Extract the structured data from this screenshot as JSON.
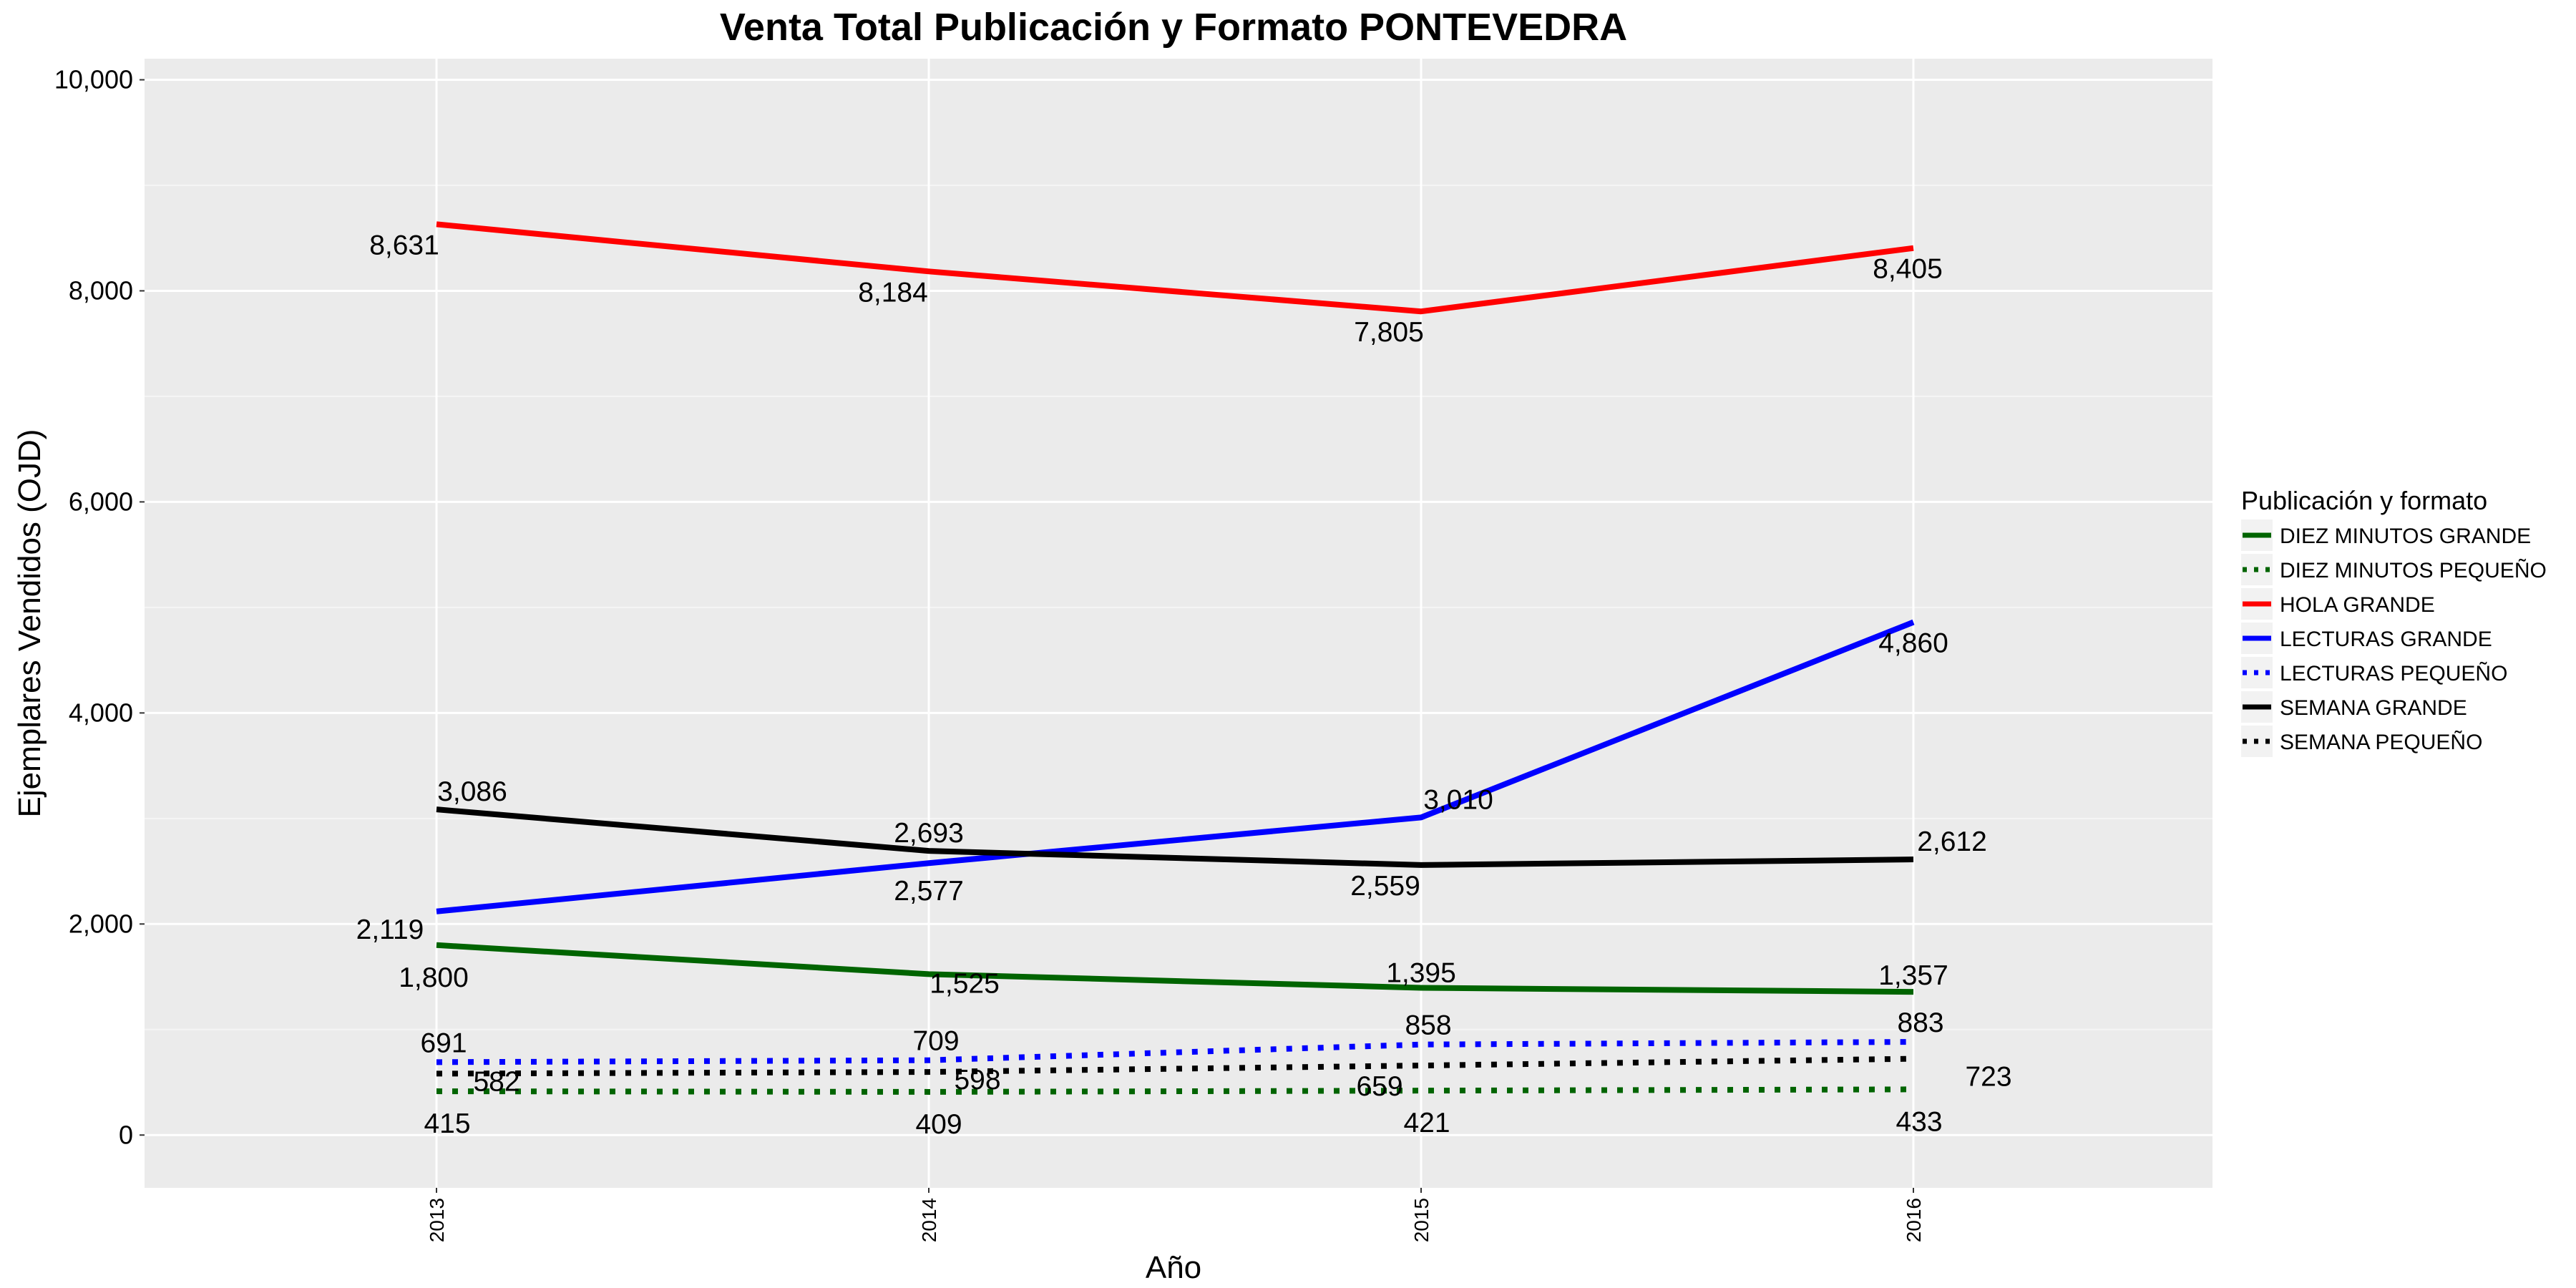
{
  "chart_data": {
    "type": "line",
    "title": "Venta Total Publicación y Formato  PONTEVEDRA",
    "xlabel": "Año",
    "ylabel": "Ejemplares Vendidos (OJD)",
    "x": [
      "2013",
      "2014",
      "2015",
      "2016"
    ],
    "ylim": [
      -500,
      10200
    ],
    "yticks": [
      "0",
      "2,000",
      "4,000",
      "6,000",
      "8,000",
      "10,000"
    ],
    "grid": true,
    "legend_title": "Publicación y formato",
    "legend_position": "right",
    "series": [
      {
        "name": "DIEZ MINUTOS GRANDE",
        "color": "#006400",
        "dash": "solid",
        "values": [
          1800,
          1525,
          1395,
          1357
        ],
        "labels": [
          "1,800",
          "1,525",
          "1,395",
          "1,357"
        ]
      },
      {
        "name": "DIEZ MINUTOS PEQUEÑO",
        "color": "#006400",
        "dash": "dotted",
        "values": [
          415,
          409,
          421,
          433
        ],
        "labels": [
          "415",
          "409",
          "421",
          "433"
        ]
      },
      {
        "name": "HOLA GRANDE",
        "color": "#ff0000",
        "dash": "solid",
        "values": [
          8631,
          8184,
          7805,
          8405
        ],
        "labels": [
          "8,631",
          "8,184",
          "7,805",
          "8,405"
        ]
      },
      {
        "name": "LECTURAS GRANDE",
        "color": "#0000ff",
        "dash": "solid",
        "values": [
          2119,
          2577,
          3010,
          4860
        ],
        "labels": [
          "2,119",
          "2,577",
          "3,010",
          "4,860"
        ]
      },
      {
        "name": "LECTURAS PEQUEÑO",
        "color": "#0000ff",
        "dash": "dotted",
        "values": [
          691,
          709,
          858,
          883
        ],
        "labels": [
          "691",
          "709",
          "858",
          "883"
        ]
      },
      {
        "name": "SEMANA GRANDE",
        "color": "#000000",
        "dash": "solid",
        "values": [
          3086,
          2693,
          2559,
          2612
        ],
        "labels": [
          "3,086",
          "2,693",
          "2,559",
          "2,612"
        ]
      },
      {
        "name": "SEMANA PEQUEÑO",
        "color": "#000000",
        "dash": "dotted",
        "values": [
          582,
          598,
          659,
          723
        ],
        "labels": [
          "582",
          "598",
          "659",
          "723"
        ]
      }
    ]
  }
}
